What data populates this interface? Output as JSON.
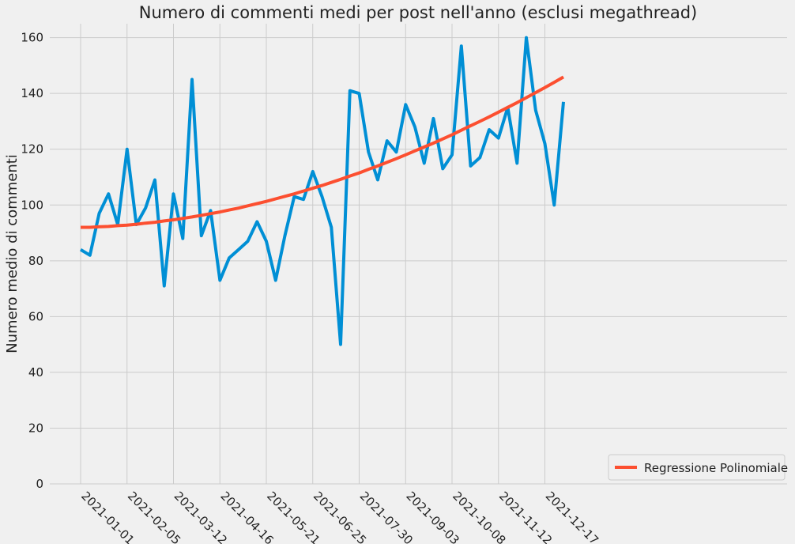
{
  "chart_data": {
    "type": "line",
    "title": "Numero di commenti medi per post nell'anno (esclusi megathread)",
    "xlabel": "",
    "ylabel": "Numero medio di commenti",
    "x_start": "2021-01-01",
    "x_step_days": 7,
    "x_ticks": [
      "2021-01-01",
      "2021-02-05",
      "2021-03-12",
      "2021-04-16",
      "2021-05-21",
      "2021-06-25",
      "2021-07-30",
      "2021-09-03",
      "2021-10-08",
      "2021-11-12",
      "2021-12-17"
    ],
    "y_ticks": [
      0,
      20,
      40,
      60,
      80,
      100,
      120,
      140,
      160
    ],
    "ylim": [
      0,
      165
    ],
    "grid": true,
    "legend_position": "bottom-right",
    "series": [
      {
        "name": "",
        "color": "#008fd5",
        "values": [
          84,
          82,
          97,
          104,
          93,
          120,
          93,
          99,
          109,
          71,
          104,
          88,
          145,
          89,
          98,
          73,
          81,
          84,
          87,
          94,
          87,
          73,
          89,
          103,
          102,
          112,
          103,
          92,
          50,
          141,
          140,
          119,
          109,
          123,
          119,
          136,
          128,
          115,
          131,
          113,
          118,
          157,
          114,
          117,
          127,
          124,
          135,
          115,
          160,
          134,
          122,
          100,
          137
        ]
      },
      {
        "name": "Regressione Polinomiale",
        "color": "#fc4f30",
        "values": [
          92.0,
          92.0,
          92.2,
          92.3,
          92.6,
          92.8,
          93.1,
          93.5,
          93.8,
          94.3,
          94.7,
          95.2,
          95.7,
          96.3,
          96.9,
          97.5,
          98.2,
          98.9,
          99.7,
          100.5,
          101.3,
          102.2,
          103.1,
          104.0,
          105.0,
          106.0,
          107.0,
          108.1,
          109.2,
          110.4,
          111.5,
          112.8,
          114.0,
          115.3,
          116.6,
          118.0,
          119.4,
          120.8,
          122.2,
          123.7,
          125.2,
          126.8,
          128.4,
          130.0,
          131.6,
          133.3,
          135.0,
          136.7,
          138.5,
          140.3,
          142.1,
          144.0,
          145.9
        ]
      }
    ]
  }
}
